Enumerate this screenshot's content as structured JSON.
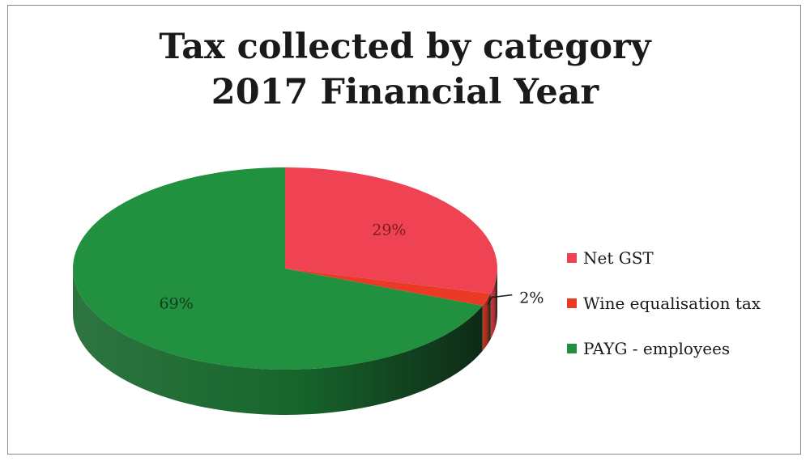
{
  "chart_data": {
    "type": "pie",
    "title_lines": [
      "Tax collected by category",
      "2017 Financial Year"
    ],
    "slices": [
      {
        "name": "Net GST",
        "value": 29,
        "label": "29%",
        "color": "#ef4353",
        "side_color": "#b42a36"
      },
      {
        "name": "Wine equalisation tax",
        "value": 2,
        "label": "2%",
        "color": "#ea3a26",
        "side_color": "#a8281a"
      },
      {
        "name": "PAYG - employees",
        "value": 69,
        "label": "69%",
        "color": "#21913f",
        "side_color": "#17652c"
      }
    ],
    "label_color_on_red": "#7a1a22",
    "label_color_on_green": "#0f3d1c",
    "legend_position": "right",
    "style": "3d-pie"
  }
}
